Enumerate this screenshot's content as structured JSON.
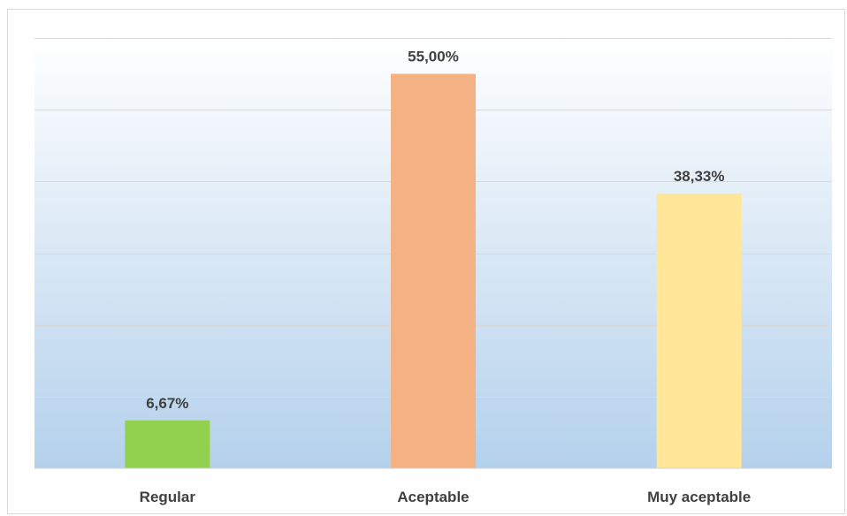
{
  "chart_data": {
    "type": "bar",
    "categories": [
      "Regular",
      "Aceptable",
      "Muy aceptable"
    ],
    "values": [
      6.67,
      55.0,
      38.33
    ],
    "data_labels": [
      "6,67%",
      "55,00%",
      "38,33%"
    ],
    "colors": [
      "#92d050",
      "#f4b183",
      "#ffe699"
    ],
    "ylim": [
      0,
      60
    ],
    "grid": true,
    "legend": "none",
    "title": "",
    "xlabel": "",
    "ylabel": "",
    "background": {
      "top": "#ffffff",
      "bottom": "#b4d1ec"
    }
  }
}
